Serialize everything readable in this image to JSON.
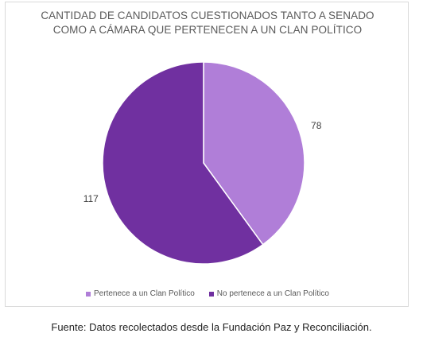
{
  "chart_data": {
    "type": "pie",
    "title_lines": [
      "CANTIDAD DE CANDIDATOS CUESTIONADOS TANTO A SENADO",
      "COMO A CÁMARA QUE PERTENECEN A UN CLAN POLÍTICO"
    ],
    "slices": [
      {
        "label": "Pertenece a un Clan Político",
        "value": 78,
        "color": "#b07ed8"
      },
      {
        "label": "No pertenece a un Clan Político",
        "value": 117,
        "color": "#7030a0"
      }
    ],
    "legend_position": "bottom",
    "start_angle_deg": 0,
    "direction": "clockwise"
  },
  "source_note": "Fuente: Datos recolectados desde la Fundación Paz y Reconciliación."
}
